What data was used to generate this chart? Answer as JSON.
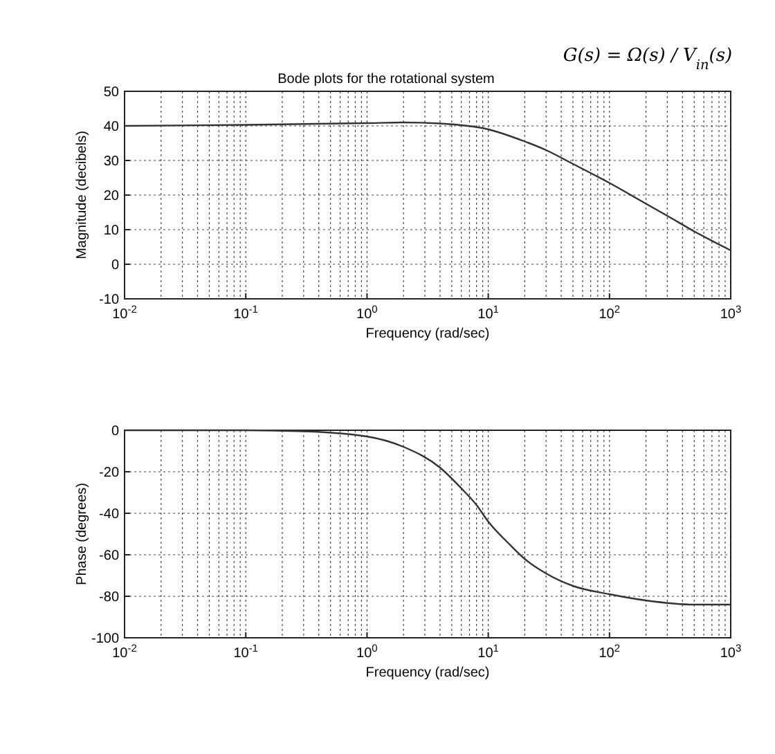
{
  "chart_data": [
    {
      "type": "line",
      "title": "Bode plots for the rotational system",
      "annotations": [
        "G(s) = Ω(s) / V$_{in}$(s)"
      ],
      "xlabel": "Frequency (rad/sec)",
      "ylabel": "Magnitude (decibels)",
      "log": "x",
      "grid": true,
      "color": "#333333",
      "x": [
        0.01,
        0.1,
        1,
        2,
        4,
        10,
        20,
        30,
        50,
        100,
        200,
        300,
        500,
        1000
      ],
      "values": [
        40,
        40.3,
        40.8,
        41,
        40.7,
        39,
        35.5,
        33,
        29,
        23.5,
        17.5,
        14,
        9.5,
        4
      ],
      "xlim": [
        0.01,
        1000
      ],
      "xticks": [
        {
          "value": 0.01,
          "label": "10$^{-2}$"
        },
        {
          "value": 0.1,
          "label": "10$^{-1}$"
        },
        {
          "value": 1,
          "label": "10$^{0}$"
        },
        {
          "value": 10,
          "label": "10$^{1}$"
        },
        {
          "value": 100,
          "label": "10$^{2}$"
        },
        {
          "value": 1000,
          "label": "10$^{3}$"
        }
      ],
      "ylim": [
        -10,
        50
      ],
      "yticks": [
        -10,
        0,
        10,
        20,
        30,
        40,
        50
      ]
    },
    {
      "type": "line",
      "xlabel": "Frequency (rad/sec)",
      "ylabel": "Phase (degrees)",
      "log": "x",
      "grid": true,
      "color": "#333333",
      "x": [
        0.01,
        0.1,
        0.3,
        1,
        2,
        4,
        6,
        8,
        10,
        15,
        20,
        30,
        50,
        100,
        200,
        500,
        1000
      ],
      "values": [
        0,
        0,
        -0.5,
        -3,
        -8,
        -18,
        -28,
        -36,
        -44,
        -55,
        -62,
        -69,
        -75,
        -79,
        -82,
        -84,
        -84
      ],
      "xlim": [
        0.01,
        1000
      ],
      "xticks": [
        {
          "value": 0.01,
          "label": "10$^{-2}$"
        },
        {
          "value": 0.1,
          "label": "10$^{-1}$"
        },
        {
          "value": 1,
          "label": "10$^{0}$"
        },
        {
          "value": 10,
          "label": "10$^{1}$"
        },
        {
          "value": 100,
          "label": "10$^{2}$"
        },
        {
          "value": 1000,
          "label": "10$^{3}$"
        }
      ],
      "ylim": [
        -100,
        0
      ],
      "yticks": [
        -100,
        -80,
        -60,
        -40,
        -20,
        0
      ]
    }
  ]
}
